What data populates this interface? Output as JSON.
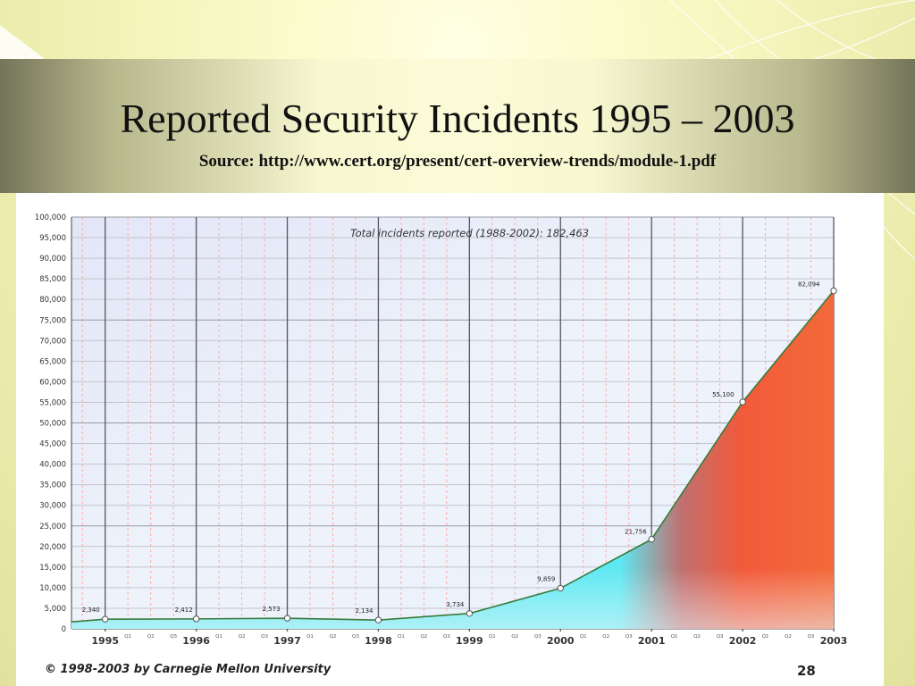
{
  "slide": {
    "title": "Reported Security Incidents 1995 – 2003",
    "source": "Source: http://www.cert.org/present/cert-overview-trends/module-1.pdf",
    "copyright": "© 1998-2003 by Carnegie Mellon University",
    "page_number": "28"
  },
  "colors": {
    "area_low": "#5ee8f2",
    "area_high": "#f25a3a",
    "line": "#3a7a3a",
    "grid_major": "#55555f",
    "grid_minor": "#ffaaaa",
    "chart_bg": "#eaf0fb"
  },
  "chart_data": {
    "type": "area",
    "annotation": "Total incidents reported (1988-2002): 182,463",
    "x": [
      1995,
      1996,
      1997,
      1998,
      1999,
      2000,
      2001,
      2002,
      2003
    ],
    "x_tick_labels": [
      "1995",
      "1996",
      "1997",
      "1998",
      "1999",
      "2000",
      "2001",
      "2002",
      "2003"
    ],
    "quarter_labels": [
      "Q1",
      "Q2",
      "Q3"
    ],
    "values": [
      2340,
      2412,
      2573,
      2134,
      3734,
      9859,
      21756,
      55100,
      82094
    ],
    "point_labels": [
      "2,340",
      "2,412",
      "2,573",
      "2,134",
      "3,734",
      "9,859",
      "21,756",
      "55,100",
      "82,094"
    ],
    "y_tick_labels": [
      "0",
      "5,000",
      "10,000",
      "15,000",
      "20,000",
      "25,000",
      "30,000",
      "35,000",
      "40,000",
      "45,000",
      "50,000",
      "55,000",
      "60,000",
      "65,000",
      "70,000",
      "75,000",
      "80,000",
      "85,000",
      "90,000",
      "95,000",
      "100,000"
    ],
    "ylim": [
      0,
      100000
    ],
    "xlim": [
      1994.63,
      2003.0
    ],
    "grid": true,
    "legend": false
  }
}
